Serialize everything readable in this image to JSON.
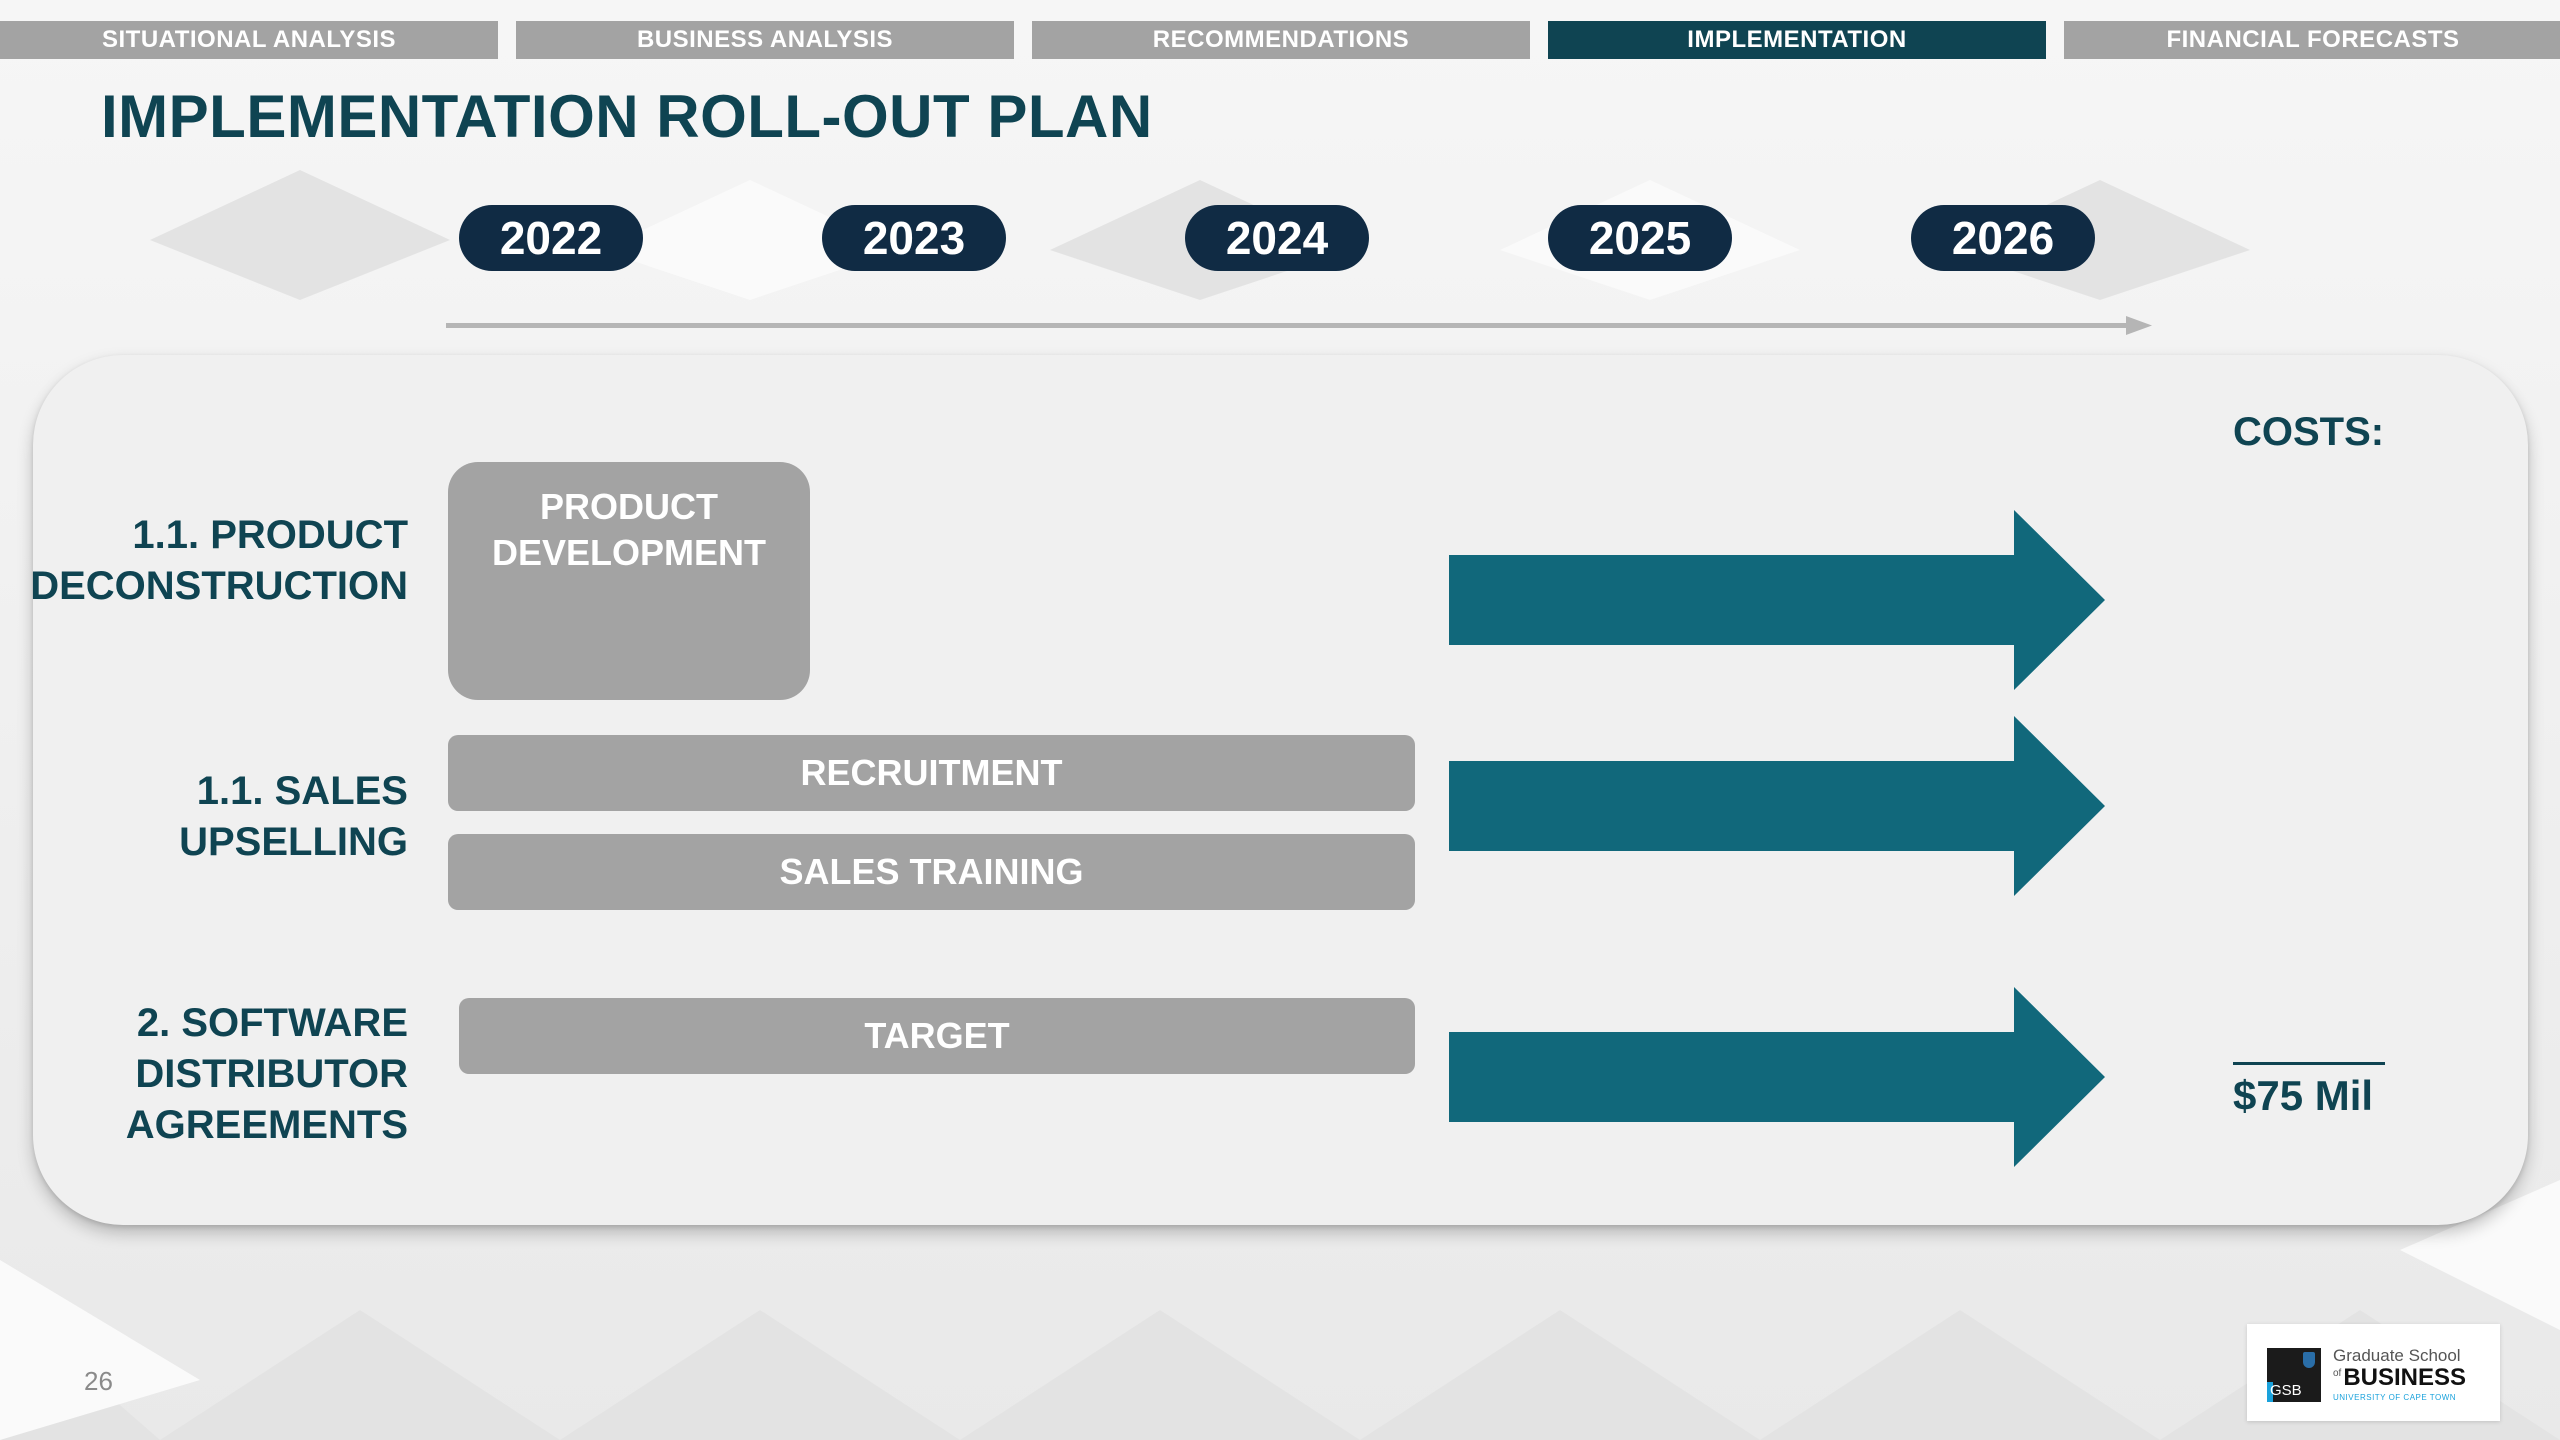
{
  "nav": {
    "tabs": [
      {
        "label": "SITUATIONAL ANALYSIS"
      },
      {
        "label": "BUSINESS ANALYSIS"
      },
      {
        "label": "RECOMMENDATIONS"
      },
      {
        "label": "IMPLEMENTATION"
      },
      {
        "label": "FINANCIAL FORECASTS"
      }
    ],
    "active_label": "IMPLEMENTATION"
  },
  "slide": {
    "title": "IMPLEMENTATION ROLL-OUT PLAN",
    "page_number": "26"
  },
  "timeline": {
    "years": [
      "2022",
      "2023",
      "2024",
      "2025",
      "2026"
    ]
  },
  "rows": [
    {
      "label_lines": [
        "1.1. PRODUCT",
        "DECONSTRUCTION"
      ],
      "activities": [
        "PRODUCT DEVELOPMENT"
      ]
    },
    {
      "label_lines": [
        "1.1. SALES",
        "UPSELLING"
      ],
      "activities": [
        "RECRUITMENT",
        "SALES TRAINING"
      ]
    },
    {
      "label_lines": [
        "2. SOFTWARE",
        "DISTRIBUTOR",
        "AGREEMENTS"
      ],
      "activities": [
        "TARGET"
      ]
    }
  ],
  "product_development_lines": [
    "PRODUCT",
    "DEVELOPMENT"
  ],
  "costs": {
    "label": "COSTS:",
    "value": "$75 Mil"
  },
  "logo": {
    "mark": "GSB",
    "line1": "Graduate School",
    "line2_of": "of",
    "line2": "BUSINESS",
    "line3": "UNIVERSITY OF CAPE TOWN"
  },
  "colors": {
    "accent_dark": "#0f4452",
    "pill_navy": "#102b44",
    "arrow_teal": "#11687b",
    "box_gray": "#a3a3a3"
  }
}
